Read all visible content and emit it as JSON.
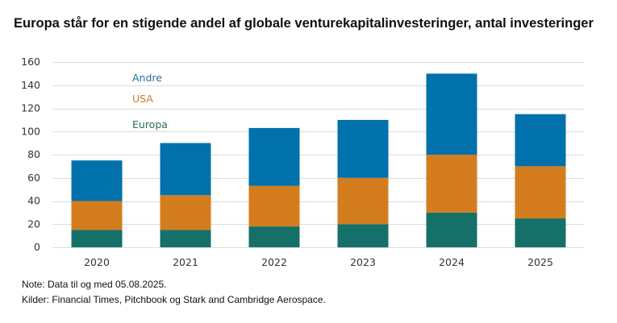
{
  "chart_data": {
    "type": "bar",
    "stacked": true,
    "title": "Europa står for en stigende andel af globale venturekapitalinvesteringer, antal investeringer",
    "xlabel": "",
    "ylabel": "",
    "categories": [
      "2020",
      "2021",
      "2022",
      "2023",
      "2024",
      "2025"
    ],
    "series": [
      {
        "name": "Europa",
        "color": "#15706A",
        "values": [
          15,
          15,
          18,
          20,
          30,
          25
        ]
      },
      {
        "name": "USA",
        "color": "#D47D1F",
        "values": [
          25,
          30,
          35,
          40,
          50,
          45
        ]
      },
      {
        "name": "Andre",
        "color": "#0071AB",
        "values": [
          35,
          45,
          50,
          50,
          70,
          45
        ]
      }
    ],
    "totals": [
      75,
      90,
      103,
      110,
      150,
      115
    ],
    "ylim": [
      0,
      160
    ],
    "yticks": [
      0,
      20,
      40,
      60,
      80,
      100,
      120,
      140,
      160
    ],
    "grid": true,
    "legend": {
      "placement": "top-left",
      "items": [
        {
          "name": "Andre",
          "color": "#2A6F9B"
        },
        {
          "name": "USA",
          "color": "#D4782A"
        },
        {
          "name": "Europa",
          "color": "#2B6A5F"
        }
      ]
    }
  },
  "footnotes": {
    "note": "Note: Data til og med 05.08.2025.",
    "sources": "Kilder: Financial Times, Pitchbook og Stark and Cambridge Aerospace."
  }
}
